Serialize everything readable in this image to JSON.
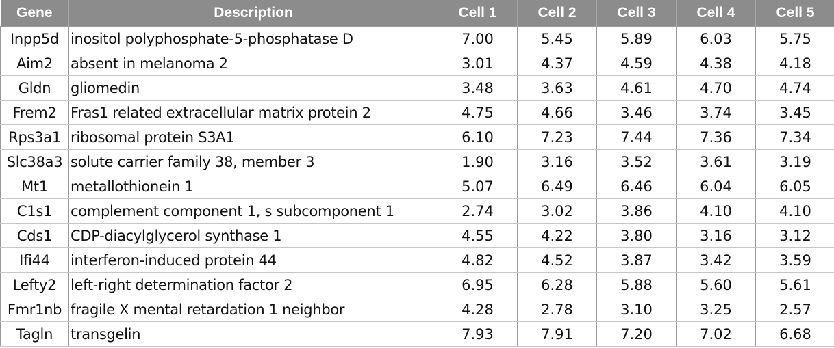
{
  "headers": [
    "Gene",
    "Description",
    "Cell 1",
    "Cell 2",
    "Cell 3",
    "Cell 4",
    "Cell 5"
  ],
  "rows": [
    {
      "gene": "Inpp5d",
      "description": "inositol polyphosphate-5-phosphatase D",
      "cells": [
        "7.00",
        "5.45",
        "5.89",
        "6.03",
        "5.75"
      ]
    },
    {
      "gene": "Aim2",
      "description": "absent in melanoma 2",
      "cells": [
        "3.01",
        "4.37",
        "4.59",
        "4.38",
        "4.18"
      ]
    },
    {
      "gene": "Gldn",
      "description": "gliomedin",
      "cells": [
        "3.48",
        "3.63",
        "4.61",
        "4.70",
        "4.74"
      ]
    },
    {
      "gene": "Frem2",
      "description": "Fras1 related extracellular matrix protein 2",
      "cells": [
        "4.75",
        "4.66",
        "3.46",
        "3.74",
        "3.45"
      ]
    },
    {
      "gene": "Rps3a1",
      "description": "ribosomal protein S3A1",
      "cells": [
        "6.10",
        "7.23",
        "7.44",
        "7.36",
        "7.34"
      ]
    },
    {
      "gene": "Slc38a3",
      "description": "solute carrier family 38, member 3",
      "cells": [
        "1.90",
        "3.16",
        "3.52",
        "3.61",
        "3.19"
      ]
    },
    {
      "gene": "Mt1",
      "description": "metallothionein 1",
      "cells": [
        "5.07",
        "6.49",
        "6.46",
        "6.04",
        "6.05"
      ]
    },
    {
      "gene": "C1s1",
      "description": "complement component 1, s subcomponent 1",
      "cells": [
        "2.74",
        "3.02",
        "3.86",
        "4.10",
        "4.10"
      ]
    },
    {
      "gene": "Cds1",
      "description": "CDP-diacylglycerol synthase 1",
      "cells": [
        "4.55",
        "4.22",
        "3.80",
        "3.16",
        "3.12"
      ]
    },
    {
      "gene": "Ifi44",
      "description": "interferon-induced protein 44",
      "cells": [
        "4.82",
        "4.52",
        "3.87",
        "3.42",
        "3.59"
      ]
    },
    {
      "gene": "Lefty2",
      "description": "left-right determination factor 2",
      "cells": [
        "6.95",
        "6.28",
        "5.88",
        "5.60",
        "5.61"
      ]
    },
    {
      "gene": "Fmr1nb",
      "description": "fragile X mental retardation 1 neighbor",
      "cells": [
        "4.28",
        "2.78",
        "3.10",
        "3.25",
        "2.57"
      ]
    },
    {
      "gene": "Tagln",
      "description": "transgelin",
      "cells": [
        "7.93",
        "7.91",
        "7.20",
        "7.02",
        "6.68"
      ]
    }
  ],
  "colors": {
    "header_bg": "#8c8c8c",
    "header_text": "#ffffff",
    "grid": "#9a9a9a"
  }
}
